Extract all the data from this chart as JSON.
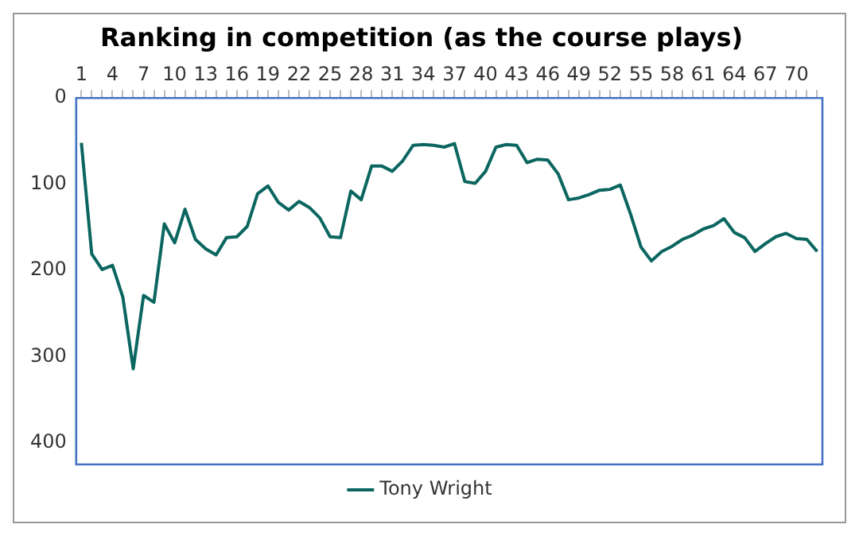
{
  "chart_data": {
    "type": "line",
    "title": "Ranking in competition (as the course plays)",
    "categories": [
      "1",
      null,
      null,
      "4",
      null,
      null,
      "7",
      null,
      null,
      "10",
      null,
      null,
      "13",
      null,
      null,
      "16",
      null,
      null,
      "19",
      null,
      null,
      "22",
      null,
      null,
      "25",
      null,
      null,
      "28",
      null,
      null,
      "31",
      null,
      null,
      "34",
      null,
      null,
      "37",
      null,
      null,
      "40",
      null,
      null,
      "43",
      null,
      null,
      "46",
      null,
      null,
      "49",
      null,
      null,
      "52",
      null,
      null,
      "55",
      null,
      null,
      "58",
      null,
      null,
      "61",
      null,
      null,
      "64",
      null,
      null,
      "67",
      null,
      null,
      "70",
      null,
      null
    ],
    "series": [
      {
        "name": "Tony Wright",
        "color": "#0b6660",
        "values": [
          52,
          181,
          199,
          194,
          231,
          314,
          229,
          237,
          146,
          168,
          129,
          164,
          175,
          182,
          162,
          161,
          149,
          111,
          102,
          121,
          130,
          120,
          127,
          139,
          161,
          162,
          108,
          118,
          79,
          79,
          85,
          73,
          55,
          54,
          55,
          57,
          53,
          97,
          99,
          85,
          57,
          54,
          55,
          75,
          71,
          72,
          88,
          118,
          116,
          112,
          107,
          106,
          101,
          135,
          173,
          189,
          178,
          172,
          164,
          159,
          152,
          148,
          140,
          156,
          162,
          178,
          169,
          161,
          157,
          163,
          164,
          178
        ]
      }
    ],
    "ylim": [
      425,
      0
    ],
    "yticks": [
      0,
      100,
      200,
      300,
      400
    ],
    "grid": false,
    "legend": "bottom",
    "marker": "none",
    "line_style": "solid"
  }
}
